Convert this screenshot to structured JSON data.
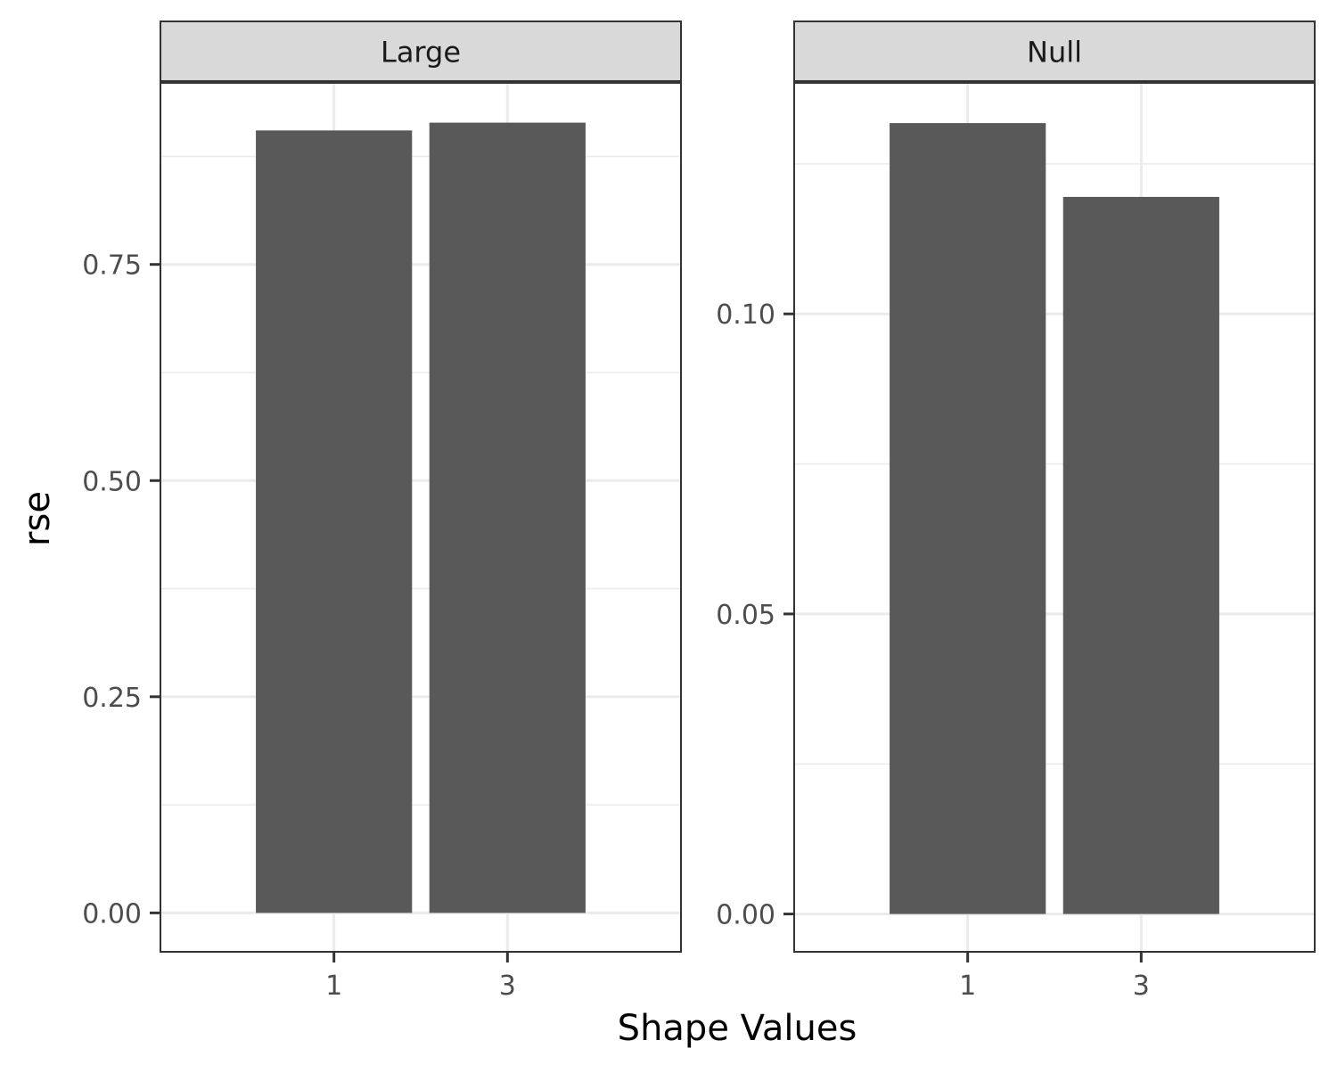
{
  "chart_data": {
    "type": "bar",
    "xlabel": "Shape Values",
    "ylabel": "rse",
    "grid": true,
    "bar_color": "#595959",
    "panel_border_color": "#333333",
    "strip_fill_color": "#d9d9d9",
    "grid_color": "#ebebeb",
    "panels": [
      {
        "label": "Large",
        "categories": [
          "1",
          "3"
        ],
        "values": [
          0.905,
          0.914
        ],
        "ylim": [
          -0.045,
          0.96
        ],
        "yticks": [
          0.0,
          0.25,
          0.5,
          0.75
        ],
        "ytick_labels": [
          "0.00",
          "0.25",
          "0.50",
          "0.75"
        ]
      },
      {
        "label": "Null",
        "categories": [
          "1",
          "3"
        ],
        "values": [
          0.1318,
          0.1195
        ],
        "ylim": [
          -0.0063,
          0.1385
        ],
        "yticks": [
          0.0,
          0.05,
          0.1
        ],
        "ytick_labels": [
          "0.00",
          "0.05",
          "0.10"
        ]
      }
    ]
  }
}
